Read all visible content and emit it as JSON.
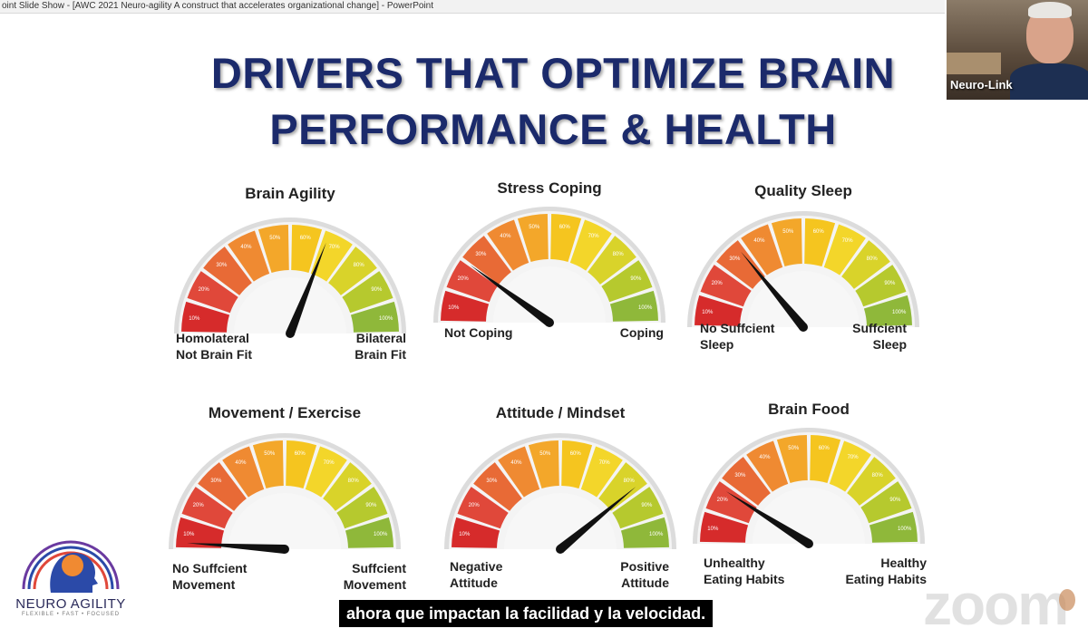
{
  "window": {
    "title": "oint Slide Show - [AWC 2021 Neuro-agility A construct that accelerates organizational change] - PowerPoint"
  },
  "slide": {
    "title_line1": "DRIVERS THAT OPTIMIZE BRAIN",
    "title_line2": "PERFORMANCE & HEALTH"
  },
  "gauges": [
    {
      "title": "Brain Agility",
      "left": "Homolateral\nNot Brain Fit",
      "right": "Bilateral\nBrain Fit",
      "value_percent": 62
    },
    {
      "title": "Stress Coping",
      "left": "Not Coping",
      "right": "Coping",
      "value_percent": 20
    },
    {
      "title": "Quality Sleep",
      "left": "No Suffcient\nSleep",
      "right": "Suffcient\nSleep",
      "value_percent": 28
    },
    {
      "title": "Movement / Exercise",
      "left": "No Suffcient\nMovement",
      "right": "Suffcient\nMovement",
      "value_percent": 2
    },
    {
      "title": "Attitude / Mindset",
      "left": "Negative\nAttitude",
      "right": "Positive\nAttitude",
      "value_percent": 78
    },
    {
      "title": "Brain Food",
      "left": "Unhealthy\nEating Habits",
      "right": "Healthy\nEating Habits",
      "value_percent": 18
    }
  ],
  "tick_labels": [
    "10%",
    "20%",
    "30%",
    "40%",
    "50%",
    "60%",
    "70%",
    "80%",
    "90%",
    "100%"
  ],
  "segment_colors": [
    "#d62b2b",
    "#e0483a",
    "#e86a36",
    "#ef8a32",
    "#f3a72a",
    "#f5c51f",
    "#f3d62a",
    "#d9d32a",
    "#b6c92e",
    "#8fb83a"
  ],
  "video": {
    "participant_name": "Neuro-Link"
  },
  "logo": {
    "name": "NEURO AGILITY",
    "tagline": "FLEXIBLE • FAST • FOCUSED"
  },
  "caption": {
    "text": "ahora que impactan la facilidad y la velocidad."
  },
  "watermark": {
    "text": "zoom"
  }
}
